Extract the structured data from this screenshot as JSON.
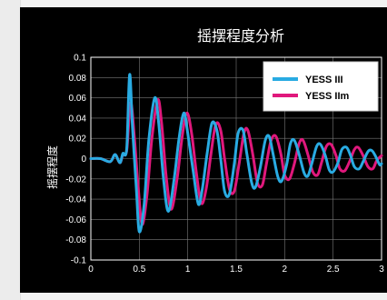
{
  "chart_data": {
    "type": "line",
    "title": "摇摆程度分析",
    "xlabel": "",
    "ylabel": "摇摆程度",
    "xlim": [
      0,
      3
    ],
    "ylim": [
      -0.1,
      0.1
    ],
    "grid": true,
    "legend_position": "top-right",
    "x_ticks": [
      "0",
      "0.5",
      "1",
      "1.5",
      "2",
      "2.5",
      "3"
    ],
    "y_ticks": [
      "0.1",
      "0.08",
      "0.06",
      "0.04",
      "0.02",
      "0",
      "-0.02",
      "-0.04",
      "-0.06",
      "-0.08",
      "-0.1"
    ],
    "background": "#000000",
    "series": [
      {
        "name": "YESS III",
        "color": "#29abe2",
        "x": [
          0,
          0.1,
          0.2,
          0.25,
          0.3,
          0.33,
          0.37,
          0.4,
          0.43,
          0.47,
          0.5,
          0.55,
          0.6,
          0.66,
          0.7,
          0.75,
          0.8,
          0.86,
          0.91,
          0.96,
          1.0,
          1.06,
          1.11,
          1.15,
          1.2,
          1.25,
          1.3,
          1.34,
          1.38,
          1.43,
          1.48,
          1.52,
          1.57,
          1.61,
          1.66,
          1.7,
          1.75,
          1.8,
          1.84,
          1.88,
          1.93,
          1.97,
          2.02,
          2.06,
          2.1,
          2.15,
          2.2,
          2.24,
          2.28,
          2.33,
          2.37,
          2.42,
          2.46,
          2.5,
          2.55,
          2.59,
          2.64,
          2.68,
          2.72,
          2.77,
          2.81,
          2.86,
          2.9,
          2.94,
          2.98,
          3.0
        ],
        "y": [
          0,
          0,
          -0.003,
          0.004,
          -0.004,
          0.005,
          0.01,
          0.083,
          0.03,
          -0.03,
          -0.072,
          -0.045,
          0.02,
          0.06,
          0.035,
          -0.02,
          -0.052,
          -0.02,
          0.02,
          0.045,
          0.025,
          -0.015,
          -0.045,
          -0.03,
          0.005,
          0.035,
          0.028,
          0.0,
          -0.032,
          -0.035,
          -0.005,
          0.025,
          0.028,
          0.005,
          -0.024,
          -0.028,
          -0.008,
          0.018,
          0.022,
          0.005,
          -0.018,
          -0.022,
          -0.006,
          0.015,
          0.018,
          0.004,
          -0.014,
          -0.017,
          -0.005,
          0.012,
          0.014,
          0.003,
          -0.011,
          -0.013,
          -0.004,
          0.009,
          0.011,
          0.003,
          -0.008,
          -0.01,
          -0.003,
          0.007,
          0.008,
          0.002,
          -0.006,
          -0.005
        ]
      },
      {
        "name": "YESS IIm",
        "color": "#e0187c",
        "x": [
          0,
          0.1,
          0.2,
          0.25,
          0.3,
          0.33,
          0.37,
          0.41,
          0.45,
          0.49,
          0.53,
          0.58,
          0.63,
          0.69,
          0.73,
          0.78,
          0.83,
          0.89,
          0.94,
          0.99,
          1.04,
          1.09,
          1.14,
          1.19,
          1.24,
          1.29,
          1.34,
          1.38,
          1.43,
          1.48,
          1.53,
          1.58,
          1.62,
          1.67,
          1.72,
          1.77,
          1.81,
          1.86,
          1.91,
          1.96,
          2.0,
          2.05,
          2.1,
          2.15,
          2.19,
          2.24,
          2.29,
          2.34,
          2.38,
          2.43,
          2.48,
          2.53,
          2.57,
          2.62,
          2.67,
          2.72,
          2.76,
          2.81,
          2.86,
          2.91,
          2.95,
          3.0
        ],
        "y": [
          0,
          0,
          -0.003,
          0.004,
          -0.004,
          0.004,
          0.008,
          0.055,
          0.02,
          -0.03,
          -0.065,
          -0.035,
          0.02,
          0.058,
          0.035,
          -0.02,
          -0.05,
          -0.02,
          0.02,
          0.045,
          0.025,
          -0.015,
          -0.044,
          -0.03,
          0.005,
          0.034,
          0.028,
          0.0,
          -0.03,
          -0.032,
          -0.005,
          0.025,
          0.028,
          0.005,
          -0.024,
          -0.026,
          -0.006,
          0.018,
          0.022,
          0.005,
          -0.016,
          -0.02,
          -0.005,
          0.015,
          0.018,
          0.004,
          -0.013,
          -0.016,
          -0.004,
          0.012,
          0.014,
          0.003,
          -0.01,
          -0.012,
          -0.003,
          0.009,
          0.011,
          0.003,
          -0.008,
          -0.01,
          -0.002,
          0.003
        ]
      }
    ]
  }
}
